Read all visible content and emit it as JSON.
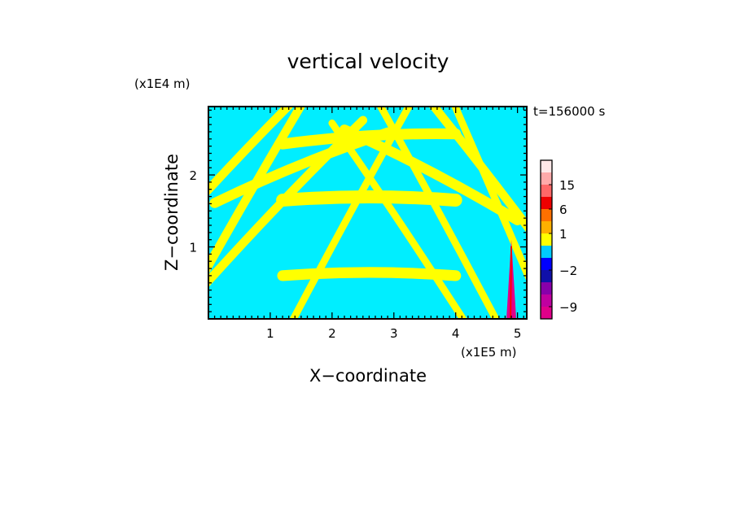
{
  "chart_data": {
    "type": "heatmap",
    "title": "vertical velocity",
    "xlabel": "X−coordinate",
    "ylabel": "Z−coordinate",
    "x_unit": "(x1E5 m)",
    "y_unit": "(x1E4 m)",
    "time_label": "t=156000 s",
    "xlim": [
      0,
      5.15
    ],
    "ylim": [
      0,
      2.95
    ],
    "x_ticks": [
      1,
      2,
      3,
      4,
      5
    ],
    "y_ticks": [
      1,
      2
    ],
    "x_tick_labels": [
      "1",
      "2",
      "3",
      "4",
      "5"
    ],
    "y_tick_labels": [
      "1",
      "2"
    ],
    "background_color": "#00eeff",
    "positive_band_color": "#ffff00",
    "bands": [
      {
        "x_center": 0.6,
        "z_center": 2.3,
        "slope": 0.9,
        "width": 0.12
      },
      {
        "x_center": 1.5,
        "z_center": 2.1,
        "slope": 0.35,
        "width": 0.14
      },
      {
        "x_center": 2.6,
        "z_center": 1.65,
        "slope": 0.0,
        "width": 0.18
      },
      {
        "x_center": 2.6,
        "z_center": 2.5,
        "slope": 0.05,
        "width": 0.15
      },
      {
        "x_center": 3.6,
        "z_center": 2.0,
        "slope": -0.45,
        "width": 0.14
      },
      {
        "x_center": 4.3,
        "z_center": 2.2,
        "slope": -1.1,
        "width": 0.12
      },
      {
        "x_center": 4.7,
        "z_center": 1.5,
        "slope": -2.0,
        "width": 0.1
      },
      {
        "x_center": 0.4,
        "z_center": 1.3,
        "slope": 1.5,
        "width": 0.12
      },
      {
        "x_center": 1.1,
        "z_center": 1.5,
        "slope": 0.9,
        "width": 0.12
      },
      {
        "x_center": 1.9,
        "z_center": 0.8,
        "slope": 1.6,
        "width": 0.1
      },
      {
        "x_center": 2.6,
        "z_center": 0.6,
        "slope": 0.0,
        "width": 0.15
      },
      {
        "x_center": 3.4,
        "z_center": 0.9,
        "slope": -1.3,
        "width": 0.1
      },
      {
        "x_center": 4.0,
        "z_center": 1.0,
        "slope": -1.6,
        "width": 0.1
      }
    ],
    "convective_cell": {
      "x": 4.9,
      "z_top": 1.1,
      "color_core": "#ff0000",
      "color_edge": "#e0008a"
    },
    "colorbar": {
      "colors": [
        "#e0008a",
        "#c000a0",
        "#8800aa",
        "#1010a8",
        "#0000ff",
        "#00ccff",
        "#ffff00",
        "#ffb000",
        "#ff7000",
        "#ee0000",
        "#ff6868",
        "#ffaaaa",
        "#ffe8e8"
      ],
      "levels": [
        -12,
        -9,
        -6,
        -4,
        -2,
        -1,
        0,
        1,
        3,
        6,
        10,
        15,
        19,
        25
      ],
      "tick_labels": [
        "15",
        "6",
        "1",
        "−2",
        "−9"
      ],
      "tick_values": [
        15,
        6,
        1,
        -2,
        -9
      ]
    }
  }
}
